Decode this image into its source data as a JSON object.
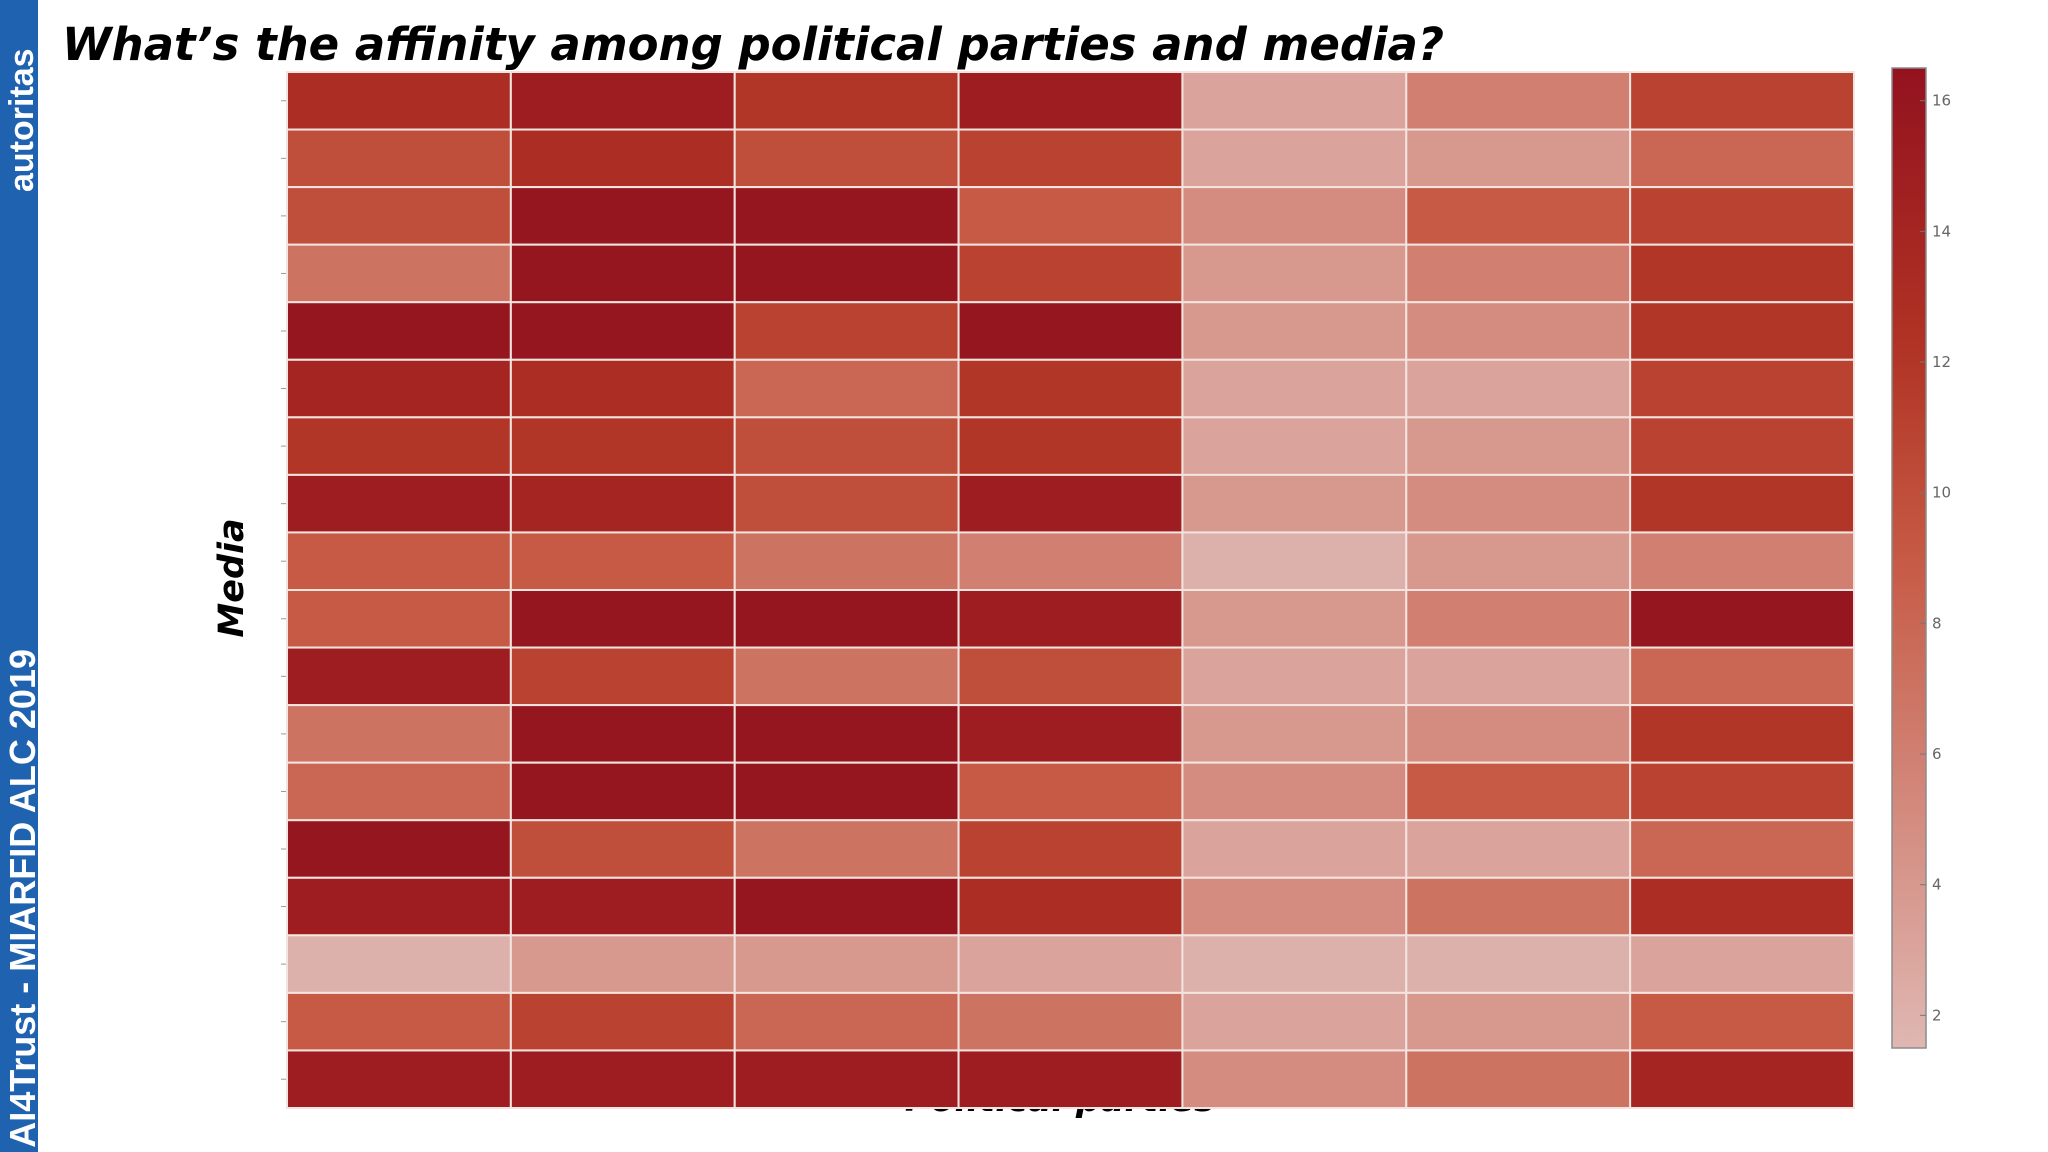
{
  "branding": {
    "top": "autoritas",
    "bottom": "AI4Trust - MIARFID ALC 2019"
  },
  "chart_data": {
    "type": "heatmap",
    "title": "What’s the affinity among political parties and media?",
    "xlabel": "Political parties",
    "ylabel": "Media",
    "grid": true,
    "legend": "colorbar right",
    "colorscale": {
      "min": 1.5,
      "max": 16.5,
      "low_color": "#dfb7b2",
      "high_color": "#93121f"
    },
    "colorbar_ticks": [
      2,
      4,
      6,
      8,
      10,
      12,
      14,
      16
    ],
    "rows": 18,
    "columns": 7,
    "values": [
      [
        13,
        15,
        12,
        15,
        3,
        6,
        11
      ],
      [
        10,
        13,
        10,
        11,
        3,
        4,
        8
      ],
      [
        10,
        16,
        16,
        9,
        5,
        9,
        11
      ],
      [
        7,
        16,
        16,
        11,
        4,
        6,
        12
      ],
      [
        16,
        16,
        11,
        16,
        4,
        5,
        12
      ],
      [
        14,
        13,
        8,
        12,
        3,
        3,
        11
      ],
      [
        12,
        12,
        10,
        12,
        3,
        4,
        11
      ],
      [
        15,
        14,
        10,
        15,
        4,
        5,
        12
      ],
      [
        9,
        9,
        7,
        6,
        2,
        4,
        6
      ],
      [
        9,
        16,
        16,
        15,
        4,
        6,
        16
      ],
      [
        15,
        11,
        7,
        10,
        3,
        3,
        8
      ],
      [
        7,
        16,
        16,
        15,
        4,
        5,
        12
      ],
      [
        8,
        16,
        16,
        9,
        5,
        9,
        11
      ],
      [
        16,
        10,
        7,
        11,
        3,
        3,
        8
      ],
      [
        15,
        15,
        16,
        13,
        5,
        7,
        13
      ],
      [
        2,
        4,
        4,
        3,
        2,
        2,
        3
      ],
      [
        9,
        11,
        8,
        7,
        3,
        4,
        9
      ],
      [
        15,
        15,
        15,
        15,
        5,
        7,
        14
      ]
    ]
  }
}
